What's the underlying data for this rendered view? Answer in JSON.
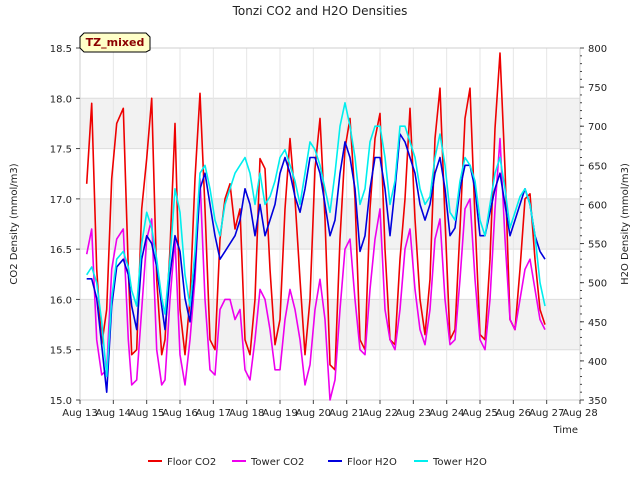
{
  "chart_data": {
    "type": "line",
    "title": "Tonzi CO2 and H2O Densities",
    "xlabel": "Time",
    "ylabel_left": "CO2 Density (mmol/m3)",
    "ylabel_right": "H2O Density (mmol/m3)",
    "badge": "TZ_mixed",
    "x_ticks": [
      "Aug 13",
      "Aug 14",
      "Aug 15",
      "Aug 16",
      "Aug 17",
      "Aug 18",
      "Aug 19",
      "Aug 20",
      "Aug 21",
      "Aug 22",
      "Aug 23",
      "Aug 24",
      "Aug 25",
      "Aug 26",
      "Aug 27",
      "Aug 28"
    ],
    "xlim": [
      13,
      28
    ],
    "ylim_left": [
      15.0,
      18.5
    ],
    "ylim_right": [
      350,
      800
    ],
    "y_ticks_left": [
      "15.0",
      "15.5",
      "16.0",
      "16.5",
      "17.0",
      "17.5",
      "18.0",
      "18.5"
    ],
    "y_ticks_right": [
      "350",
      "400",
      "450",
      "500",
      "550",
      "600",
      "650",
      "700",
      "750",
      "800"
    ],
    "grid": true,
    "legend_position": "bottom",
    "series": [
      {
        "name": "Floor CO2",
        "color": "#ee0000",
        "axis": "left",
        "x": [
          13.2,
          13.35,
          13.5,
          13.65,
          13.8,
          13.95,
          14.1,
          14.3,
          14.45,
          14.55,
          14.7,
          14.85,
          15.0,
          15.15,
          15.3,
          15.45,
          15.55,
          15.7,
          15.85,
          16.0,
          16.15,
          16.3,
          16.45,
          16.6,
          16.75,
          16.9,
          17.05,
          17.2,
          17.35,
          17.5,
          17.65,
          17.8,
          17.95,
          18.1,
          18.25,
          18.4,
          18.55,
          18.7,
          18.85,
          19.0,
          19.15,
          19.3,
          19.45,
          19.6,
          19.75,
          19.9,
          20.05,
          20.2,
          20.35,
          20.5,
          20.65,
          20.8,
          20.95,
          21.1,
          21.25,
          21.4,
          21.55,
          21.7,
          21.85,
          22.0,
          22.15,
          22.3,
          22.45,
          22.6,
          22.75,
          22.9,
          23.05,
          23.2,
          23.35,
          23.5,
          23.65,
          23.8,
          23.95,
          24.1,
          24.25,
          24.4,
          24.55,
          24.7,
          24.85,
          25.0,
          25.15,
          25.3,
          25.45,
          25.6,
          25.75,
          25.9,
          26.05,
          26.2,
          26.35,
          26.5,
          26.65,
          26.8,
          26.95
        ],
        "y": [
          17.15,
          17.95,
          16.3,
          15.55,
          15.9,
          17.2,
          17.75,
          17.9,
          16.3,
          15.45,
          15.5,
          16.9,
          17.4,
          18.0,
          16.2,
          15.45,
          15.6,
          16.5,
          17.75,
          15.9,
          15.45,
          16.0,
          17.2,
          18.05,
          16.9,
          15.6,
          15.5,
          16.6,
          17.0,
          17.15,
          16.7,
          16.9,
          15.6,
          15.45,
          16.0,
          17.4,
          17.3,
          16.3,
          15.55,
          15.8,
          16.9,
          17.6,
          17.0,
          16.2,
          15.45,
          16.0,
          17.3,
          17.8,
          16.8,
          15.35,
          15.3,
          16.6,
          17.5,
          17.8,
          17.0,
          15.6,
          15.5,
          16.9,
          17.6,
          17.85,
          16.5,
          15.6,
          15.55,
          16.4,
          17.0,
          17.9,
          16.8,
          16.0,
          15.65,
          16.2,
          17.6,
          18.1,
          16.8,
          15.6,
          15.7,
          16.7,
          17.8,
          18.1,
          16.8,
          15.65,
          15.6,
          16.4,
          17.7,
          18.45,
          17.3,
          15.8,
          15.7,
          16.3,
          17.0,
          17.05,
          16.4,
          15.9,
          15.75
        ]
      },
      {
        "name": "Tower CO2",
        "color": "#ee00ee",
        "axis": "left",
        "x": [
          13.2,
          13.35,
          13.5,
          13.65,
          13.8,
          13.95,
          14.1,
          14.3,
          14.45,
          14.55,
          14.7,
          14.85,
          15.0,
          15.15,
          15.3,
          15.45,
          15.55,
          15.7,
          15.85,
          16.0,
          16.15,
          16.3,
          16.45,
          16.6,
          16.75,
          16.9,
          17.05,
          17.2,
          17.35,
          17.5,
          17.65,
          17.8,
          17.95,
          18.1,
          18.25,
          18.4,
          18.55,
          18.7,
          18.85,
          19.0,
          19.15,
          19.3,
          19.45,
          19.6,
          19.75,
          19.9,
          20.05,
          20.2,
          20.35,
          20.5,
          20.65,
          20.8,
          20.95,
          21.1,
          21.25,
          21.4,
          21.55,
          21.7,
          21.85,
          22.0,
          22.15,
          22.3,
          22.45,
          22.6,
          22.75,
          22.9,
          23.05,
          23.2,
          23.35,
          23.5,
          23.65,
          23.8,
          23.95,
          24.1,
          24.25,
          24.4,
          24.55,
          24.7,
          24.85,
          25.0,
          25.15,
          25.3,
          25.45,
          25.6,
          25.75,
          25.9,
          26.05,
          26.2,
          26.35,
          26.5,
          26.65,
          26.8,
          26.95
        ],
        "y": [
          16.45,
          16.7,
          15.6,
          15.25,
          15.3,
          16.3,
          16.6,
          16.7,
          15.6,
          15.15,
          15.2,
          15.9,
          16.6,
          16.8,
          15.5,
          15.15,
          15.2,
          16.0,
          16.6,
          15.45,
          15.15,
          15.6,
          16.2,
          17.2,
          16.0,
          15.3,
          15.25,
          15.9,
          16.0,
          16.0,
          15.8,
          15.9,
          15.3,
          15.2,
          15.6,
          16.1,
          16.0,
          15.7,
          15.3,
          15.3,
          15.8,
          16.1,
          15.9,
          15.6,
          15.15,
          15.35,
          15.9,
          16.2,
          15.8,
          15.0,
          15.2,
          15.9,
          16.5,
          16.6,
          16.0,
          15.5,
          15.45,
          16.1,
          16.6,
          16.9,
          15.9,
          15.6,
          15.5,
          15.9,
          16.5,
          16.7,
          16.1,
          15.7,
          15.55,
          15.9,
          16.6,
          16.8,
          16.0,
          15.55,
          15.6,
          16.2,
          16.9,
          17.0,
          16.2,
          15.6,
          15.5,
          16.0,
          16.9,
          17.6,
          16.6,
          15.8,
          15.7,
          16.0,
          16.3,
          16.4,
          16.1,
          15.8,
          15.7
        ]
      },
      {
        "name": "Floor H2O",
        "color": "#0000dd",
        "axis": "right",
        "x": [
          13.2,
          13.35,
          13.5,
          13.65,
          13.8,
          13.95,
          14.1,
          14.3,
          14.45,
          14.55,
          14.7,
          14.85,
          15.0,
          15.15,
          15.3,
          15.45,
          15.55,
          15.7,
          15.85,
          16.0,
          16.15,
          16.3,
          16.45,
          16.6,
          16.75,
          16.9,
          17.05,
          17.2,
          17.35,
          17.5,
          17.65,
          17.8,
          17.95,
          18.1,
          18.25,
          18.4,
          18.55,
          18.7,
          18.85,
          19.0,
          19.15,
          19.3,
          19.45,
          19.6,
          19.75,
          19.9,
          20.05,
          20.2,
          20.35,
          20.5,
          20.65,
          20.8,
          20.95,
          21.1,
          21.25,
          21.4,
          21.55,
          21.7,
          21.85,
          22.0,
          22.15,
          22.3,
          22.45,
          22.6,
          22.75,
          22.9,
          23.05,
          23.2,
          23.35,
          23.5,
          23.65,
          23.8,
          23.95,
          24.1,
          24.25,
          24.4,
          24.55,
          24.7,
          24.85,
          25.0,
          25.15,
          25.3,
          25.45,
          25.6,
          25.75,
          25.9,
          26.05,
          26.2,
          26.35,
          26.5,
          26.65,
          26.8,
          26.95
        ],
        "y": [
          505,
          505,
          480,
          420,
          360,
          470,
          520,
          530,
          510,
          470,
          440,
          530,
          560,
          550,
          520,
          470,
          440,
          510,
          560,
          540,
          480,
          450,
          520,
          620,
          640,
          600,
          560,
          530,
          540,
          550,
          560,
          580,
          620,
          600,
          560,
          600,
          560,
          580,
          600,
          640,
          660,
          640,
          610,
          590,
          620,
          660,
          660,
          640,
          600,
          560,
          580,
          640,
          680,
          660,
          620,
          540,
          560,
          620,
          660,
          660,
          620,
          560,
          620,
          690,
          680,
          660,
          640,
          600,
          580,
          600,
          640,
          660,
          620,
          560,
          570,
          620,
          650,
          650,
          620,
          560,
          560,
          590,
          620,
          640,
          600,
          560,
          580,
          600,
          620,
          600,
          560,
          540,
          530
        ]
      },
      {
        "name": "Tower H2O",
        "color": "#00eeee",
        "axis": "right",
        "x": [
          13.2,
          13.35,
          13.5,
          13.65,
          13.8,
          13.95,
          14.1,
          14.3,
          14.45,
          14.55,
          14.7,
          14.85,
          15.0,
          15.15,
          15.3,
          15.45,
          15.55,
          15.7,
          15.85,
          16.0,
          16.15,
          16.3,
          16.45,
          16.6,
          16.75,
          16.9,
          17.05,
          17.2,
          17.35,
          17.5,
          17.65,
          17.8,
          17.95,
          18.1,
          18.25,
          18.4,
          18.55,
          18.7,
          18.85,
          19.0,
          19.15,
          19.3,
          19.45,
          19.6,
          19.75,
          19.9,
          20.05,
          20.2,
          20.35,
          20.5,
          20.65,
          20.8,
          20.95,
          21.1,
          21.25,
          21.4,
          21.55,
          21.7,
          21.85,
          22.0,
          22.15,
          22.3,
          22.45,
          22.6,
          22.75,
          22.9,
          23.05,
          23.2,
          23.35,
          23.5,
          23.65,
          23.8,
          23.95,
          24.1,
          24.25,
          24.4,
          24.55,
          24.7,
          24.85,
          25.0,
          25.15,
          25.3,
          25.45,
          25.6,
          25.75,
          25.9,
          26.05,
          26.2,
          26.35,
          26.5,
          26.65,
          26.8,
          26.95
        ],
        "y": [
          510,
          520,
          500,
          450,
          380,
          480,
          530,
          540,
          520,
          490,
          470,
          550,
          590,
          570,
          530,
          480,
          460,
          530,
          620,
          590,
          510,
          470,
          540,
          640,
          650,
          620,
          580,
          560,
          600,
          620,
          640,
          650,
          660,
          640,
          600,
          640,
          600,
          610,
          630,
          660,
          670,
          650,
          630,
          600,
          640,
          680,
          670,
          650,
          620,
          590,
          640,
          700,
          730,
          700,
          660,
          600,
          620,
          680,
          700,
          700,
          660,
          600,
          630,
          700,
          700,
          680,
          660,
          620,
          600,
          610,
          660,
          690,
          650,
          590,
          580,
          630,
          660,
          650,
          630,
          580,
          560,
          600,
          640,
          660,
          620,
          570,
          590,
          610,
          620,
          600,
          560,
          500,
          470
        ]
      }
    ]
  }
}
